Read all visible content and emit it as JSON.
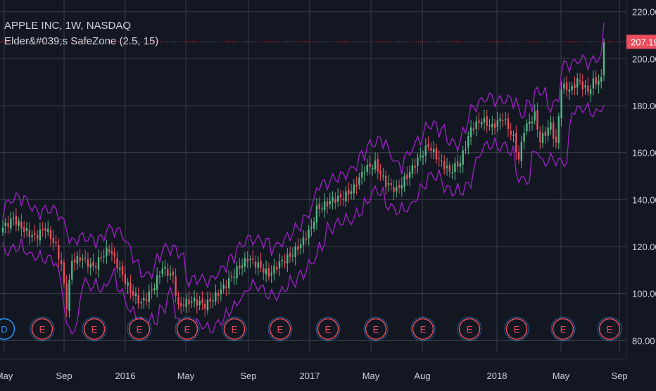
{
  "legend": {
    "symbol_line": "APPLE INC, 1W, NASDAQ",
    "indicator_line": "Elder&#039;s SafeZone (2.5, 15)"
  },
  "colors": {
    "background": "#131722",
    "grid": "#3a3e4a",
    "up": "#53b987",
    "down": "#eb4d5c",
    "band": "#a020c8",
    "price_line": "#eb4d5c",
    "earnings_ring": "#eb4d5c",
    "dividend_ring": "#2196f3",
    "text": "#d1d4dc"
  },
  "chart_data": {
    "type": "candlestick",
    "title": "APPLE INC, 1W, NASDAQ",
    "indicator": "Elder&#039;s SafeZone (2.5, 15)",
    "ylim": [
      75,
      225
    ],
    "y_ticks": [
      "220.00",
      "200.00",
      "180.00",
      "160.00",
      "140.00",
      "120.00",
      "100.00",
      "80.00"
    ],
    "x_ticks": [
      "May",
      "Sep",
      "2016",
      "May",
      "Sep",
      "2017",
      "May",
      "Aug",
      "2018",
      "May",
      "Sep"
    ],
    "last_price": 207.19,
    "last_price_label": "207.19",
    "grid": true,
    "close_anchors": [
      [
        0,
        128
      ],
      [
        4,
        132
      ],
      [
        8,
        127
      ],
      [
        12,
        124
      ],
      [
        16,
        128
      ],
      [
        20,
        120
      ],
      [
        22,
        112
      ],
      [
        24,
        95
      ],
      [
        26,
        114
      ],
      [
        30,
        115
      ],
      [
        34,
        111
      ],
      [
        38,
        117
      ],
      [
        40,
        119
      ],
      [
        44,
        110
      ],
      [
        48,
        101
      ],
      [
        52,
        96
      ],
      [
        56,
        101
      ],
      [
        60,
        111
      ],
      [
        64,
        107
      ],
      [
        66,
        94
      ],
      [
        68,
        96
      ],
      [
        72,
        97
      ],
      [
        76,
        95
      ],
      [
        80,
        99
      ],
      [
        84,
        104
      ],
      [
        88,
        110
      ],
      [
        92,
        115
      ],
      [
        96,
        112
      ],
      [
        100,
        108
      ],
      [
        104,
        113
      ],
      [
        108,
        116
      ],
      [
        112,
        121
      ],
      [
        116,
        128
      ],
      [
        118,
        136
      ],
      [
        120,
        137
      ],
      [
        124,
        140
      ],
      [
        128,
        141
      ],
      [
        132,
        145
      ],
      [
        136,
        153
      ],
      [
        140,
        155
      ],
      [
        144,
        147
      ],
      [
        148,
        144
      ],
      [
        152,
        150
      ],
      [
        156,
        157
      ],
      [
        160,
        163
      ],
      [
        164,
        157
      ],
      [
        168,
        152
      ],
      [
        172,
        156
      ],
      [
        176,
        170
      ],
      [
        180,
        174
      ],
      [
        184,
        171
      ],
      [
        188,
        175
      ],
      [
        192,
        166
      ],
      [
        194,
        157
      ],
      [
        196,
        170
      ],
      [
        200,
        176
      ],
      [
        202,
        165
      ],
      [
        206,
        172
      ],
      [
        208,
        163
      ],
      [
        210,
        188
      ],
      [
        214,
        187
      ],
      [
        216,
        191
      ],
      [
        220,
        186
      ],
      [
        222,
        190
      ],
      [
        225,
        191
      ],
      [
        226,
        207
      ]
    ],
    "earnings_markers": [
      {
        "date_tick": "Jul 2015",
        "kind": "dividend",
        "label": "D"
      },
      {
        "date_tick": "Jul 2015",
        "kind": "earnings",
        "label": "E"
      },
      {
        "date_tick": "Oct 2015",
        "kind": "earnings",
        "label": "E"
      },
      {
        "date_tick": "Jan 2016",
        "kind": "earnings",
        "label": "E"
      },
      {
        "date_tick": "Apr 2016",
        "kind": "earnings",
        "label": "E"
      },
      {
        "date_tick": "Jul 2016",
        "kind": "earnings",
        "label": "E"
      },
      {
        "date_tick": "Oct 2016",
        "kind": "earnings",
        "label": "E"
      },
      {
        "date_tick": "Jan 2017",
        "kind": "earnings",
        "label": "E"
      },
      {
        "date_tick": "May 2017",
        "kind": "earnings",
        "label": "E"
      },
      {
        "date_tick": "Aug 2017",
        "kind": "earnings",
        "label": "E"
      },
      {
        "date_tick": "Nov 2017",
        "kind": "earnings",
        "label": "E"
      },
      {
        "date_tick": "Feb 2018",
        "kind": "earnings",
        "label": "E"
      },
      {
        "date_tick": "May 2018",
        "kind": "earnings",
        "label": "E"
      },
      {
        "date_tick": "Aug 2018",
        "kind": "earnings",
        "label": "E"
      }
    ]
  }
}
